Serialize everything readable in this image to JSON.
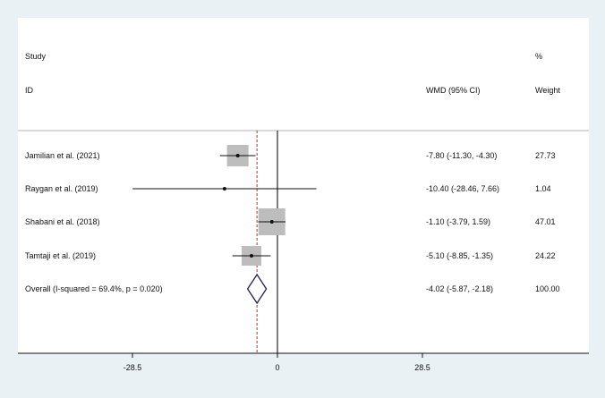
{
  "chart_data": {
    "type": "forest",
    "headers": {
      "study_top": "Study",
      "study_bottom": "ID",
      "effect": "WMD (95% CI)",
      "weight_top": "%",
      "weight_bottom": "Weight"
    },
    "studies": [
      {
        "label": "Jamilian et al. (2021)",
        "est": -7.8,
        "lo": -11.3,
        "hi": -4.3,
        "ci_text": "-7.80 (-11.30, -4.30)",
        "weight": "27.73"
      },
      {
        "label": "Raygan et al. (2019)",
        "est": -10.4,
        "lo": -28.46,
        "hi": 7.66,
        "ci_text": "-10.40 (-28.46, 7.66)",
        "weight": "1.04"
      },
      {
        "label": "Shabani et al. (2018)",
        "est": -1.1,
        "lo": -3.79,
        "hi": 1.59,
        "ci_text": "-1.10 (-3.79, 1.59)",
        "weight": "47.01"
      },
      {
        "label": "Tamtaji et al. (2019)",
        "est": -5.1,
        "lo": -8.85,
        "hi": -1.35,
        "ci_text": "-5.10 (-8.85, -1.35)",
        "weight": "24.22"
      }
    ],
    "overall": {
      "label": "Overall  (I-squared = 69.4%, p = 0.020)",
      "est": -4.02,
      "lo": -5.87,
      "hi": -2.18,
      "ci_text": "-4.02 (-5.87, -2.18)",
      "weight": "100.00"
    },
    "x_ticks": [
      {
        "value": -28.5,
        "label": "-28.5"
      },
      {
        "value": 0,
        "label": "0"
      },
      {
        "value": 28.5,
        "label": "28.5"
      }
    ],
    "null_line": 0,
    "colors": {
      "background": "#e9f1f4",
      "panel": "#ffffff",
      "box": "#bdbdbd",
      "line": "#111111",
      "diamond": "#1f1a5e",
      "overall_line": "#b03030"
    }
  }
}
